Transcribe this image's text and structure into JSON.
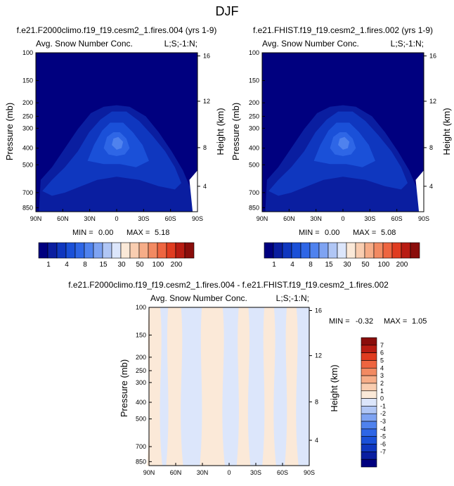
{
  "page_title": "DJF",
  "colors": {
    "abs_scale": [
      "#00007f",
      "#0a1ea0",
      "#0f37bf",
      "#1a50d8",
      "#2e66e6",
      "#4f82ee",
      "#7ea3f2",
      "#b0c6f5",
      "#dce6fb",
      "#fbe9d8",
      "#f9cdb0",
      "#f6ad88",
      "#f28a62",
      "#ee6540",
      "#e03c20",
      "#b81c12",
      "#8a0d0b"
    ],
    "diff_scale": [
      "#00007f",
      "#0a1ea0",
      "#0f37bf",
      "#1a50d8",
      "#2e66e6",
      "#4f82ee",
      "#7ea3f2",
      "#b0c6f5",
      "#dce6fb",
      "#fbe9d8",
      "#f9cdb0",
      "#f6ad88",
      "#f28a62",
      "#ee6540",
      "#e03c20",
      "#b81c12",
      "#8a0d0b"
    ]
  },
  "chart_data": [
    {
      "type": "heatmap",
      "id": "panel1",
      "title": "f.e21.F2000climo.f19_f19.cesm2_1.fires.004 (yrs 1-9)",
      "subtitle_left": "Avg. Snow Number Conc.",
      "subtitle_right": "L;S;-1:N;",
      "ylabel": "Pressure (mb)",
      "ylabel_right": "Height (km)",
      "x_ticks": [
        "90N",
        "60N",
        "30N",
        "0",
        "30S",
        "60S",
        "90S"
      ],
      "y_ticks": [
        "100",
        "150",
        "200",
        "250",
        "300",
        "400",
        "500",
        "700",
        "850"
      ],
      "y_ticks_right": [
        "16",
        "12",
        "8",
        "4"
      ],
      "stats": {
        "min_label": "MIN =",
        "min": "0.00",
        "max_label": "MAX =",
        "max": "5.18"
      },
      "colorbar_labels": [
        "1",
        "4",
        "8",
        "15",
        "30",
        "50",
        "100",
        "200"
      ],
      "xlim": [
        90,
        -90
      ],
      "ylim_mb": [
        100,
        900
      ]
    },
    {
      "type": "heatmap",
      "id": "panel2",
      "title": "f.e21.FHIST.f19_f19.cesm2_1.fires.002 (yrs 1-9)",
      "subtitle_left": "Avg. Snow Number Conc.",
      "subtitle_right": "L;S;-1:N;",
      "ylabel": "Pressure (mb)",
      "ylabel_right": "Height (km)",
      "x_ticks": [
        "90N",
        "60N",
        "30N",
        "0",
        "30S",
        "60S",
        "90S"
      ],
      "y_ticks": [
        "100",
        "150",
        "200",
        "250",
        "300",
        "400",
        "500",
        "700",
        "850"
      ],
      "y_ticks_right": [
        "16",
        "12",
        "8",
        "4"
      ],
      "stats": {
        "min_label": "MIN =",
        "min": "0.00",
        "max_label": "MAX =",
        "max": "5.08"
      },
      "colorbar_labels": [
        "1",
        "4",
        "8",
        "15",
        "30",
        "50",
        "100",
        "200"
      ],
      "xlim": [
        90,
        -90
      ],
      "ylim_mb": [
        100,
        900
      ]
    },
    {
      "type": "heatmap",
      "id": "panel3",
      "title": "f.e21.F2000climo.f19_f19.cesm2_1.fires.004 - f.e21.FHIST.f19_f19.cesm2_1.fires.002",
      "subtitle_left": "Avg. Snow Number Conc.",
      "subtitle_right": "L;S;-1:N;",
      "ylabel": "Pressure (mb)",
      "ylabel_right": "Height (km)",
      "x_ticks": [
        "90N",
        "60N",
        "30N",
        "0",
        "30S",
        "60S",
        "90S"
      ],
      "y_ticks": [
        "100",
        "150",
        "200",
        "250",
        "300",
        "400",
        "500",
        "700",
        "850"
      ],
      "y_ticks_right": [
        "16",
        "12",
        "8",
        "4"
      ],
      "stats": {
        "min_label": "MIN =",
        "min": "-0.32",
        "max_label": "MAX =",
        "max": "1.05"
      },
      "colorbar_labels": [
        "7",
        "6",
        "5",
        "4",
        "3",
        "2",
        "1",
        "0",
        "-1",
        "-2",
        "-3",
        "-4",
        "-5",
        "-6",
        "-7"
      ],
      "xlim": [
        90,
        -90
      ],
      "ylim_mb": [
        100,
        900
      ]
    }
  ]
}
